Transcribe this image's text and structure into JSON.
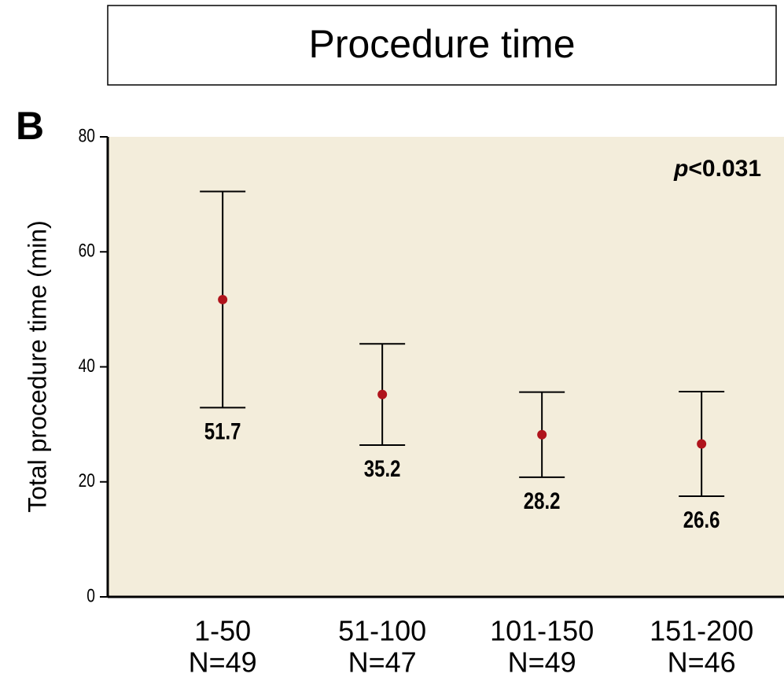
{
  "chart_data": {
    "type": "errorbar",
    "title": "Procedure time",
    "panel_label": "B",
    "y_label": "Total procedure time (min)",
    "annotation": {
      "symbol": "p",
      "text": "<0.031"
    },
    "categories": [
      "1-50",
      "51-100",
      "101-150",
      "151-200"
    ],
    "group_sizes": [
      "N=49",
      "N=47",
      "N=49",
      "N=46"
    ],
    "values": [
      51.7,
      35.2,
      28.2,
      26.6
    ],
    "errors": [
      18.8,
      8.8,
      7.4,
      9.1
    ],
    "color": "#b0141c",
    "background": "#f3eddb",
    "ylim": [
      0,
      80
    ],
    "yticks": [
      0,
      20,
      40,
      60,
      80
    ]
  }
}
